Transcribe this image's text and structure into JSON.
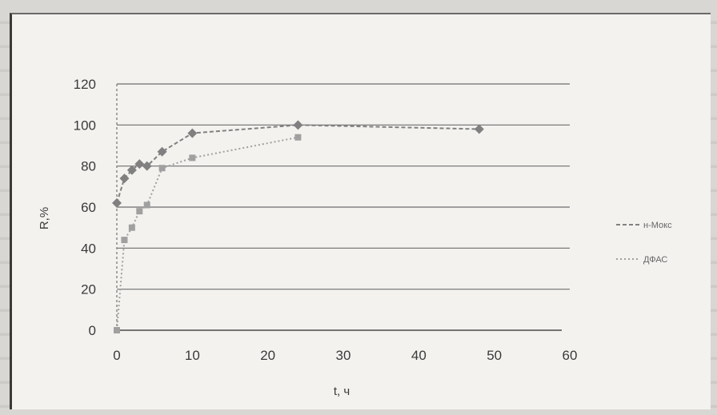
{
  "chart_data": {
    "type": "line",
    "xlabel": "t, ч",
    "ylabel": "R,%",
    "xlim": [
      0,
      60
    ],
    "ylim": [
      0,
      120
    ],
    "xticks": [
      "0",
      "10",
      "20",
      "30",
      "40",
      "50",
      "60"
    ],
    "yticks": [
      "0",
      "20",
      "40",
      "60",
      "80",
      "100",
      "120"
    ],
    "grid": "horizontal",
    "legend": "right",
    "series": [
      {
        "name": "н-Мокс",
        "color": "#808080",
        "x": [
          0,
          1,
          2,
          3,
          4,
          6,
          10,
          24,
          48
        ],
        "y": [
          62,
          74,
          78,
          81,
          80,
          87,
          96,
          100,
          98
        ]
      },
      {
        "name": "ДФАС",
        "color": "#a0a0a0",
        "x": [
          0,
          1,
          2,
          3,
          4,
          6,
          10,
          24
        ],
        "y": [
          0,
          44,
          50,
          58,
          61,
          79,
          84,
          94
        ]
      }
    ]
  }
}
